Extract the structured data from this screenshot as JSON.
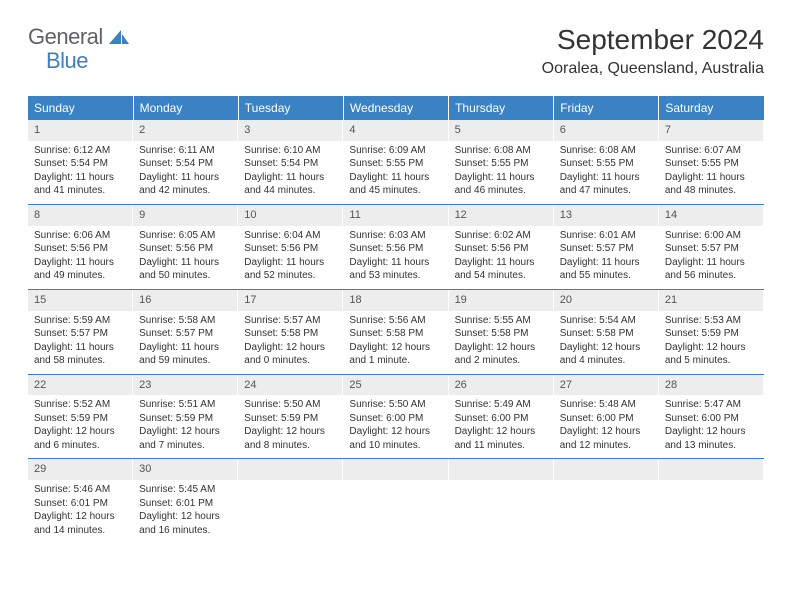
{
  "brand": {
    "text_general": "General",
    "text_blue": "Blue",
    "icon_color": "#3a82c4"
  },
  "title": "September 2024",
  "location": "Ooralea, Queensland, Australia",
  "colors": {
    "header_bg": "#3a82c4",
    "header_text": "#ffffff",
    "daynum_bg": "#ededed",
    "text": "#333333",
    "separator": "#3a82c4"
  },
  "typography": {
    "title_fontsize": 28,
    "location_fontsize": 16,
    "weekday_fontsize": 12,
    "daynum_fontsize": 11,
    "body_fontsize": 10
  },
  "weekdays": [
    "Sunday",
    "Monday",
    "Tuesday",
    "Wednesday",
    "Thursday",
    "Friday",
    "Saturday"
  ],
  "weeks": [
    [
      {
        "n": "1",
        "sunrise": "Sunrise: 6:12 AM",
        "sunset": "Sunset: 5:54 PM",
        "day1": "Daylight: 11 hours",
        "day2": "and 41 minutes."
      },
      {
        "n": "2",
        "sunrise": "Sunrise: 6:11 AM",
        "sunset": "Sunset: 5:54 PM",
        "day1": "Daylight: 11 hours",
        "day2": "and 42 minutes."
      },
      {
        "n": "3",
        "sunrise": "Sunrise: 6:10 AM",
        "sunset": "Sunset: 5:54 PM",
        "day1": "Daylight: 11 hours",
        "day2": "and 44 minutes."
      },
      {
        "n": "4",
        "sunrise": "Sunrise: 6:09 AM",
        "sunset": "Sunset: 5:55 PM",
        "day1": "Daylight: 11 hours",
        "day2": "and 45 minutes."
      },
      {
        "n": "5",
        "sunrise": "Sunrise: 6:08 AM",
        "sunset": "Sunset: 5:55 PM",
        "day1": "Daylight: 11 hours",
        "day2": "and 46 minutes."
      },
      {
        "n": "6",
        "sunrise": "Sunrise: 6:08 AM",
        "sunset": "Sunset: 5:55 PM",
        "day1": "Daylight: 11 hours",
        "day2": "and 47 minutes."
      },
      {
        "n": "7",
        "sunrise": "Sunrise: 6:07 AM",
        "sunset": "Sunset: 5:55 PM",
        "day1": "Daylight: 11 hours",
        "day2": "and 48 minutes."
      }
    ],
    [
      {
        "n": "8",
        "sunrise": "Sunrise: 6:06 AM",
        "sunset": "Sunset: 5:56 PM",
        "day1": "Daylight: 11 hours",
        "day2": "and 49 minutes."
      },
      {
        "n": "9",
        "sunrise": "Sunrise: 6:05 AM",
        "sunset": "Sunset: 5:56 PM",
        "day1": "Daylight: 11 hours",
        "day2": "and 50 minutes."
      },
      {
        "n": "10",
        "sunrise": "Sunrise: 6:04 AM",
        "sunset": "Sunset: 5:56 PM",
        "day1": "Daylight: 11 hours",
        "day2": "and 52 minutes."
      },
      {
        "n": "11",
        "sunrise": "Sunrise: 6:03 AM",
        "sunset": "Sunset: 5:56 PM",
        "day1": "Daylight: 11 hours",
        "day2": "and 53 minutes."
      },
      {
        "n": "12",
        "sunrise": "Sunrise: 6:02 AM",
        "sunset": "Sunset: 5:56 PM",
        "day1": "Daylight: 11 hours",
        "day2": "and 54 minutes."
      },
      {
        "n": "13",
        "sunrise": "Sunrise: 6:01 AM",
        "sunset": "Sunset: 5:57 PM",
        "day1": "Daylight: 11 hours",
        "day2": "and 55 minutes."
      },
      {
        "n": "14",
        "sunrise": "Sunrise: 6:00 AM",
        "sunset": "Sunset: 5:57 PM",
        "day1": "Daylight: 11 hours",
        "day2": "and 56 minutes."
      }
    ],
    [
      {
        "n": "15",
        "sunrise": "Sunrise: 5:59 AM",
        "sunset": "Sunset: 5:57 PM",
        "day1": "Daylight: 11 hours",
        "day2": "and 58 minutes."
      },
      {
        "n": "16",
        "sunrise": "Sunrise: 5:58 AM",
        "sunset": "Sunset: 5:57 PM",
        "day1": "Daylight: 11 hours",
        "day2": "and 59 minutes."
      },
      {
        "n": "17",
        "sunrise": "Sunrise: 5:57 AM",
        "sunset": "Sunset: 5:58 PM",
        "day1": "Daylight: 12 hours",
        "day2": "and 0 minutes."
      },
      {
        "n": "18",
        "sunrise": "Sunrise: 5:56 AM",
        "sunset": "Sunset: 5:58 PM",
        "day1": "Daylight: 12 hours",
        "day2": "and 1 minute."
      },
      {
        "n": "19",
        "sunrise": "Sunrise: 5:55 AM",
        "sunset": "Sunset: 5:58 PM",
        "day1": "Daylight: 12 hours",
        "day2": "and 2 minutes."
      },
      {
        "n": "20",
        "sunrise": "Sunrise: 5:54 AM",
        "sunset": "Sunset: 5:58 PM",
        "day1": "Daylight: 12 hours",
        "day2": "and 4 minutes."
      },
      {
        "n": "21",
        "sunrise": "Sunrise: 5:53 AM",
        "sunset": "Sunset: 5:59 PM",
        "day1": "Daylight: 12 hours",
        "day2": "and 5 minutes."
      }
    ],
    [
      {
        "n": "22",
        "sunrise": "Sunrise: 5:52 AM",
        "sunset": "Sunset: 5:59 PM",
        "day1": "Daylight: 12 hours",
        "day2": "and 6 minutes."
      },
      {
        "n": "23",
        "sunrise": "Sunrise: 5:51 AM",
        "sunset": "Sunset: 5:59 PM",
        "day1": "Daylight: 12 hours",
        "day2": "and 7 minutes."
      },
      {
        "n": "24",
        "sunrise": "Sunrise: 5:50 AM",
        "sunset": "Sunset: 5:59 PM",
        "day1": "Daylight: 12 hours",
        "day2": "and 8 minutes."
      },
      {
        "n": "25",
        "sunrise": "Sunrise: 5:50 AM",
        "sunset": "Sunset: 6:00 PM",
        "day1": "Daylight: 12 hours",
        "day2": "and 10 minutes."
      },
      {
        "n": "26",
        "sunrise": "Sunrise: 5:49 AM",
        "sunset": "Sunset: 6:00 PM",
        "day1": "Daylight: 12 hours",
        "day2": "and 11 minutes."
      },
      {
        "n": "27",
        "sunrise": "Sunrise: 5:48 AM",
        "sunset": "Sunset: 6:00 PM",
        "day1": "Daylight: 12 hours",
        "day2": "and 12 minutes."
      },
      {
        "n": "28",
        "sunrise": "Sunrise: 5:47 AM",
        "sunset": "Sunset: 6:00 PM",
        "day1": "Daylight: 12 hours",
        "day2": "and 13 minutes."
      }
    ],
    [
      {
        "n": "29",
        "sunrise": "Sunrise: 5:46 AM",
        "sunset": "Sunset: 6:01 PM",
        "day1": "Daylight: 12 hours",
        "day2": "and 14 minutes."
      },
      {
        "n": "30",
        "sunrise": "Sunrise: 5:45 AM",
        "sunset": "Sunset: 6:01 PM",
        "day1": "Daylight: 12 hours",
        "day2": "and 16 minutes."
      },
      {
        "empty": true
      },
      {
        "empty": true
      },
      {
        "empty": true
      },
      {
        "empty": true
      },
      {
        "empty": true
      }
    ]
  ]
}
